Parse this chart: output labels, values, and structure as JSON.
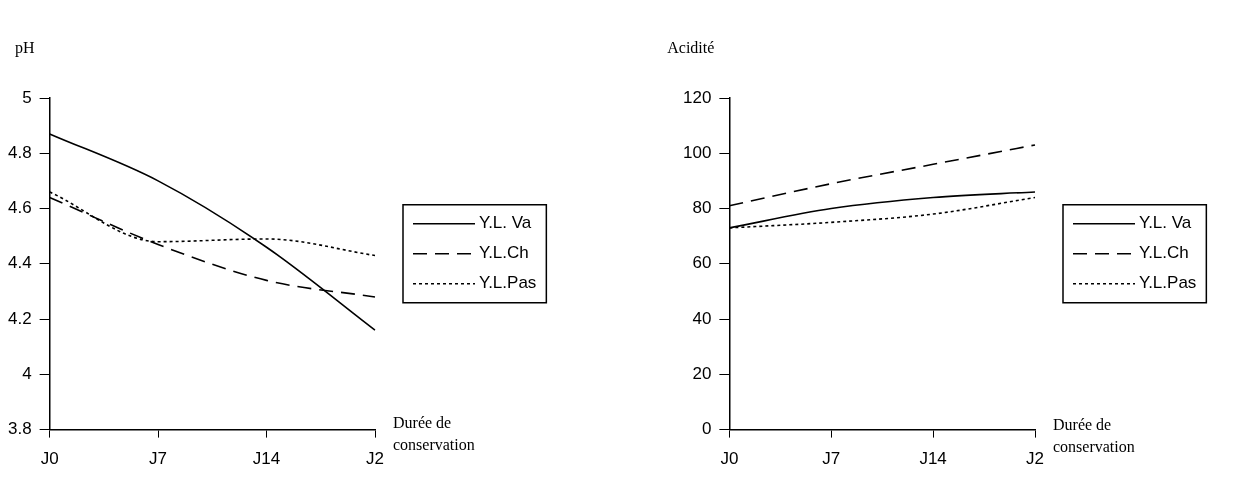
{
  "chart_data": [
    {
      "type": "line",
      "ylabel": "pH",
      "xlabel": "Durée de conservation",
      "categories": [
        "J0",
        "J7",
        "J14",
        "J2"
      ],
      "series": [
        {
          "name": "Y.L. Va",
          "color": "#000000",
          "line_style": "solid",
          "values": [
            4.87,
            4.7,
            4.46,
            4.16
          ]
        },
        {
          "name": "Y.L.Ch",
          "color": "#000000",
          "line_style": "dashed",
          "values": [
            4.64,
            4.47,
            4.34,
            4.28
          ]
        },
        {
          "name": "Y.L.Pas",
          "color": "#000000",
          "line_style": "dotted",
          "values": [
            4.66,
            4.48,
            4.49,
            4.43
          ]
        }
      ],
      "ylim": [
        3.8,
        5
      ],
      "yticks": [
        3.8,
        4,
        4.2,
        4.4,
        4.6,
        4.8,
        5
      ],
      "grid": false,
      "legend": "right",
      "marker": "none"
    },
    {
      "type": "line",
      "ylabel": "Acidité",
      "xlabel": "Durée de conservation",
      "categories": [
        "J0",
        "J7",
        "J14",
        "J2"
      ],
      "series": [
        {
          "name": "Y.L. Va",
          "color": "#000000",
          "line_style": "solid",
          "values": [
            73,
            80,
            84,
            86
          ]
        },
        {
          "name": "Y.L.Ch",
          "color": "#000000",
          "line_style": "dashed",
          "values": [
            81,
            89,
            96,
            103
          ]
        },
        {
          "name": "Y.L.Pas",
          "color": "#000000",
          "line_style": "dotted",
          "values": [
            73,
            75,
            78,
            84
          ]
        }
      ],
      "ylim": [
        0,
        120
      ],
      "yticks": [
        0,
        20,
        40,
        60,
        80,
        100,
        120
      ],
      "grid": false,
      "legend": "right",
      "marker": "none"
    }
  ]
}
